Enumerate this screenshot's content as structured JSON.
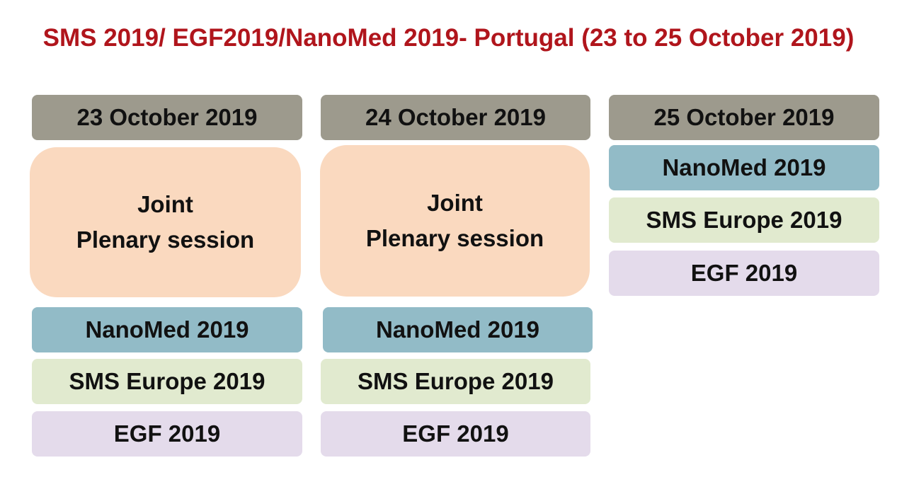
{
  "title": "SMS 2019/ EGF2019/NanoMed 2019- Portugal (23 to 25 October 2019)",
  "days": [
    {
      "date": "23 October 2019",
      "plenary": [
        "Joint",
        "Plenary session"
      ],
      "sessions": [
        "NanoMed 2019",
        "SMS Europe 2019",
        "EGF 2019"
      ]
    },
    {
      "date": "24 October 2019",
      "plenary": [
        "Joint",
        "Plenary session"
      ],
      "sessions": [
        "NanoMed 2019",
        "SMS Europe 2019",
        "EGF 2019"
      ]
    },
    {
      "date": "25 October 2019",
      "sessions": [
        "NanoMed 2019",
        "SMS Europe 2019",
        "EGF 2019"
      ]
    }
  ],
  "colors": {
    "title": "#b0151c",
    "date": "#9d9a8d",
    "plenary": "#fad9bf",
    "nanomed": "#92bbc7",
    "sms": "#e1eacf",
    "egf": "#e4dbeb"
  }
}
